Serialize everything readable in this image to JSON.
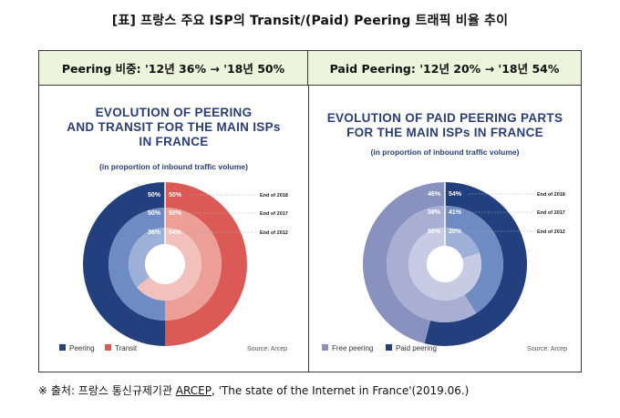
{
  "page": {
    "title": "[표] 프랑스 주요 ISP의 Transit/(Paid) Peering 트래픽 비율 추이",
    "left_header": "Peering 비중: '12년 36% → '18년 50%",
    "right_header": "Paid Peering: '12년 20% → '18년 54%",
    "source_prefix": "※ 출처: 프랑스 통신규제기관 ",
    "source_org": "ARCEP",
    "source_suffix": ", 'The state of the Internet in France'(2019.06.)"
  },
  "colors": {
    "navy": "#223f7e",
    "red": "#dc5a55",
    "salmon": "#ec9e97",
    "lilac_dark": "#8991bf",
    "lilac_mid": "#a9afd3",
    "lilac_light": "#c8cbe4",
    "blue_mid": "#6f8bc4",
    "blue_light": "#9db1d8",
    "header_bg": "#eef3dc"
  },
  "chart_data": [
    {
      "type": "pie",
      "title_lines": [
        "EVOLUTION OF PEERING",
        "AND TRANSIT FOR THE MAIN ISPs",
        "IN FRANCE"
      ],
      "subtitle": "(in proportion of inbound traffic volume)",
      "rings": [
        {
          "label": "End of 2018",
          "peering": 50,
          "transit": 50,
          "peering_text": "50%",
          "transit_text": "50%"
        },
        {
          "label": "End of 2017",
          "peering": 50,
          "transit": 50,
          "peering_text": "50%",
          "transit_text": "50%"
        },
        {
          "label": "End of 2012",
          "peering": 36,
          "transit": 64,
          "peering_text": "36%",
          "transit_text": "64%"
        }
      ],
      "legend": [
        "Peering",
        "Transit"
      ],
      "source": "Source: Arcep"
    },
    {
      "type": "pie",
      "title_lines": [
        "EVOLUTION OF PAID PEERING PARTS",
        "FOR THE MAIN ISPs IN FRANCE"
      ],
      "subtitle": "(in proportion of inbound traffic volume)",
      "rings": [
        {
          "label": "End of 2018",
          "free": 46,
          "paid": 54,
          "free_text": "46%",
          "paid_text": "54%"
        },
        {
          "label": "End of 2017",
          "free": 59,
          "paid": 41,
          "free_text": "59%",
          "paid_text": "41%"
        },
        {
          "label": "End of 2012",
          "free": 80,
          "paid": 20,
          "free_text": "80%",
          "paid_text": "20%"
        }
      ],
      "legend": [
        "Free peering",
        "Paid peering"
      ],
      "source": "Source: Arcep"
    }
  ]
}
